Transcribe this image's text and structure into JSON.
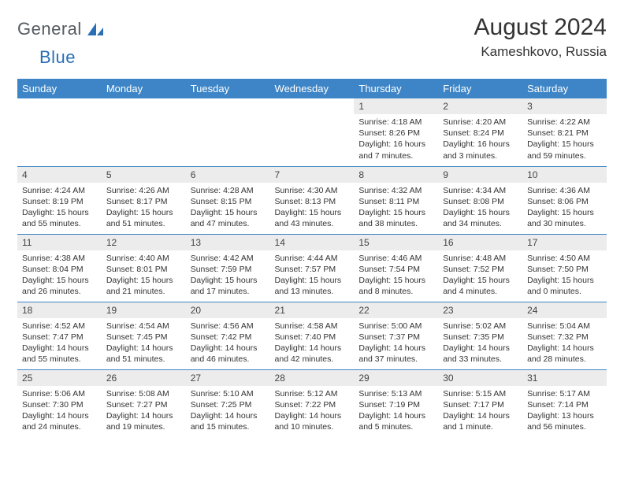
{
  "logo": {
    "word1": "General",
    "word2": "Blue"
  },
  "title": "August 2024",
  "location": "Kameshkovo, Russia",
  "colors": {
    "header_bg": "#3d85c6",
    "header_fg": "#ffffff",
    "daynum_bg": "#ececec",
    "rule": "#3d85c6"
  },
  "dayHeaders": [
    "Sunday",
    "Monday",
    "Tuesday",
    "Wednesday",
    "Thursday",
    "Friday",
    "Saturday"
  ],
  "weeks": [
    [
      {
        "n": "",
        "sr": "",
        "ss": "",
        "dl": ""
      },
      {
        "n": "",
        "sr": "",
        "ss": "",
        "dl": ""
      },
      {
        "n": "",
        "sr": "",
        "ss": "",
        "dl": ""
      },
      {
        "n": "",
        "sr": "",
        "ss": "",
        "dl": ""
      },
      {
        "n": "1",
        "sr": "Sunrise: 4:18 AM",
        "ss": "Sunset: 8:26 PM",
        "dl": "Daylight: 16 hours and 7 minutes."
      },
      {
        "n": "2",
        "sr": "Sunrise: 4:20 AM",
        "ss": "Sunset: 8:24 PM",
        "dl": "Daylight: 16 hours and 3 minutes."
      },
      {
        "n": "3",
        "sr": "Sunrise: 4:22 AM",
        "ss": "Sunset: 8:21 PM",
        "dl": "Daylight: 15 hours and 59 minutes."
      }
    ],
    [
      {
        "n": "4",
        "sr": "Sunrise: 4:24 AM",
        "ss": "Sunset: 8:19 PM",
        "dl": "Daylight: 15 hours and 55 minutes."
      },
      {
        "n": "5",
        "sr": "Sunrise: 4:26 AM",
        "ss": "Sunset: 8:17 PM",
        "dl": "Daylight: 15 hours and 51 minutes."
      },
      {
        "n": "6",
        "sr": "Sunrise: 4:28 AM",
        "ss": "Sunset: 8:15 PM",
        "dl": "Daylight: 15 hours and 47 minutes."
      },
      {
        "n": "7",
        "sr": "Sunrise: 4:30 AM",
        "ss": "Sunset: 8:13 PM",
        "dl": "Daylight: 15 hours and 43 minutes."
      },
      {
        "n": "8",
        "sr": "Sunrise: 4:32 AM",
        "ss": "Sunset: 8:11 PM",
        "dl": "Daylight: 15 hours and 38 minutes."
      },
      {
        "n": "9",
        "sr": "Sunrise: 4:34 AM",
        "ss": "Sunset: 8:08 PM",
        "dl": "Daylight: 15 hours and 34 minutes."
      },
      {
        "n": "10",
        "sr": "Sunrise: 4:36 AM",
        "ss": "Sunset: 8:06 PM",
        "dl": "Daylight: 15 hours and 30 minutes."
      }
    ],
    [
      {
        "n": "11",
        "sr": "Sunrise: 4:38 AM",
        "ss": "Sunset: 8:04 PM",
        "dl": "Daylight: 15 hours and 26 minutes."
      },
      {
        "n": "12",
        "sr": "Sunrise: 4:40 AM",
        "ss": "Sunset: 8:01 PM",
        "dl": "Daylight: 15 hours and 21 minutes."
      },
      {
        "n": "13",
        "sr": "Sunrise: 4:42 AM",
        "ss": "Sunset: 7:59 PM",
        "dl": "Daylight: 15 hours and 17 minutes."
      },
      {
        "n": "14",
        "sr": "Sunrise: 4:44 AM",
        "ss": "Sunset: 7:57 PM",
        "dl": "Daylight: 15 hours and 13 minutes."
      },
      {
        "n": "15",
        "sr": "Sunrise: 4:46 AM",
        "ss": "Sunset: 7:54 PM",
        "dl": "Daylight: 15 hours and 8 minutes."
      },
      {
        "n": "16",
        "sr": "Sunrise: 4:48 AM",
        "ss": "Sunset: 7:52 PM",
        "dl": "Daylight: 15 hours and 4 minutes."
      },
      {
        "n": "17",
        "sr": "Sunrise: 4:50 AM",
        "ss": "Sunset: 7:50 PM",
        "dl": "Daylight: 15 hours and 0 minutes."
      }
    ],
    [
      {
        "n": "18",
        "sr": "Sunrise: 4:52 AM",
        "ss": "Sunset: 7:47 PM",
        "dl": "Daylight: 14 hours and 55 minutes."
      },
      {
        "n": "19",
        "sr": "Sunrise: 4:54 AM",
        "ss": "Sunset: 7:45 PM",
        "dl": "Daylight: 14 hours and 51 minutes."
      },
      {
        "n": "20",
        "sr": "Sunrise: 4:56 AM",
        "ss": "Sunset: 7:42 PM",
        "dl": "Daylight: 14 hours and 46 minutes."
      },
      {
        "n": "21",
        "sr": "Sunrise: 4:58 AM",
        "ss": "Sunset: 7:40 PM",
        "dl": "Daylight: 14 hours and 42 minutes."
      },
      {
        "n": "22",
        "sr": "Sunrise: 5:00 AM",
        "ss": "Sunset: 7:37 PM",
        "dl": "Daylight: 14 hours and 37 minutes."
      },
      {
        "n": "23",
        "sr": "Sunrise: 5:02 AM",
        "ss": "Sunset: 7:35 PM",
        "dl": "Daylight: 14 hours and 33 minutes."
      },
      {
        "n": "24",
        "sr": "Sunrise: 5:04 AM",
        "ss": "Sunset: 7:32 PM",
        "dl": "Daylight: 14 hours and 28 minutes."
      }
    ],
    [
      {
        "n": "25",
        "sr": "Sunrise: 5:06 AM",
        "ss": "Sunset: 7:30 PM",
        "dl": "Daylight: 14 hours and 24 minutes."
      },
      {
        "n": "26",
        "sr": "Sunrise: 5:08 AM",
        "ss": "Sunset: 7:27 PM",
        "dl": "Daylight: 14 hours and 19 minutes."
      },
      {
        "n": "27",
        "sr": "Sunrise: 5:10 AM",
        "ss": "Sunset: 7:25 PM",
        "dl": "Daylight: 14 hours and 15 minutes."
      },
      {
        "n": "28",
        "sr": "Sunrise: 5:12 AM",
        "ss": "Sunset: 7:22 PM",
        "dl": "Daylight: 14 hours and 10 minutes."
      },
      {
        "n": "29",
        "sr": "Sunrise: 5:13 AM",
        "ss": "Sunset: 7:19 PM",
        "dl": "Daylight: 14 hours and 5 minutes."
      },
      {
        "n": "30",
        "sr": "Sunrise: 5:15 AM",
        "ss": "Sunset: 7:17 PM",
        "dl": "Daylight: 14 hours and 1 minute."
      },
      {
        "n": "31",
        "sr": "Sunrise: 5:17 AM",
        "ss": "Sunset: 7:14 PM",
        "dl": "Daylight: 13 hours and 56 minutes."
      }
    ]
  ]
}
